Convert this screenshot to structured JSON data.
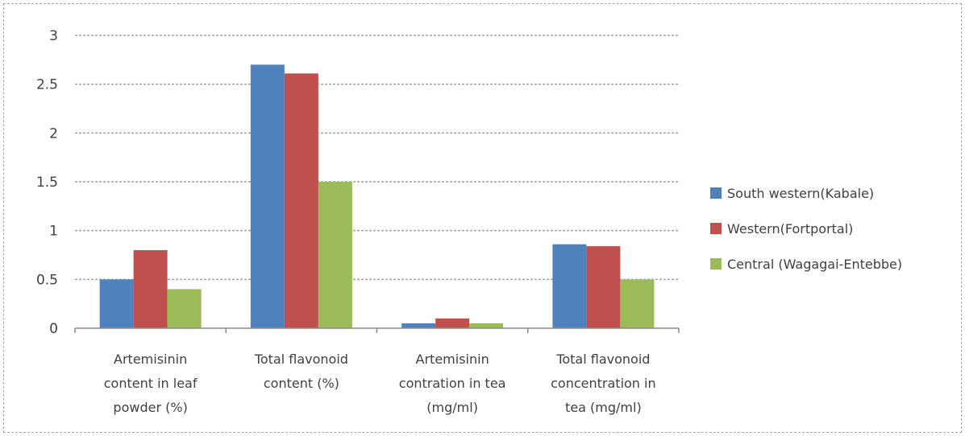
{
  "chart_data": {
    "type": "bar",
    "title": "",
    "xlabel": "",
    "ylabel": "",
    "ylim": [
      0,
      3
    ],
    "yticks": [
      "0",
      "0.5",
      "1",
      "1.5",
      "2",
      "2.5",
      "3"
    ],
    "categories": [
      [
        "Artemisinin",
        "content in leaf",
        "powder (%)"
      ],
      [
        "Total flavonoid",
        "content (%)"
      ],
      [
        "Artemisinin",
        "contration in tea",
        "(mg/ml)"
      ],
      [
        "Total flavonoid",
        "concentration in",
        "tea (mg/ml)"
      ]
    ],
    "series": [
      {
        "name": "South western(Kabale)",
        "color": "#4f81bd",
        "values": [
          0.5,
          2.7,
          0.05,
          0.86
        ]
      },
      {
        "name": "Western(Fortportal)",
        "color": "#c0504d",
        "values": [
          0.8,
          2.61,
          0.1,
          0.84
        ]
      },
      {
        "name": "Central (Wagagai-Entebbe)",
        "color": "#9bbb59",
        "values": [
          0.4,
          1.5,
          0.05,
          0.5
        ]
      }
    ],
    "grid": true,
    "legend_position": "right"
  }
}
